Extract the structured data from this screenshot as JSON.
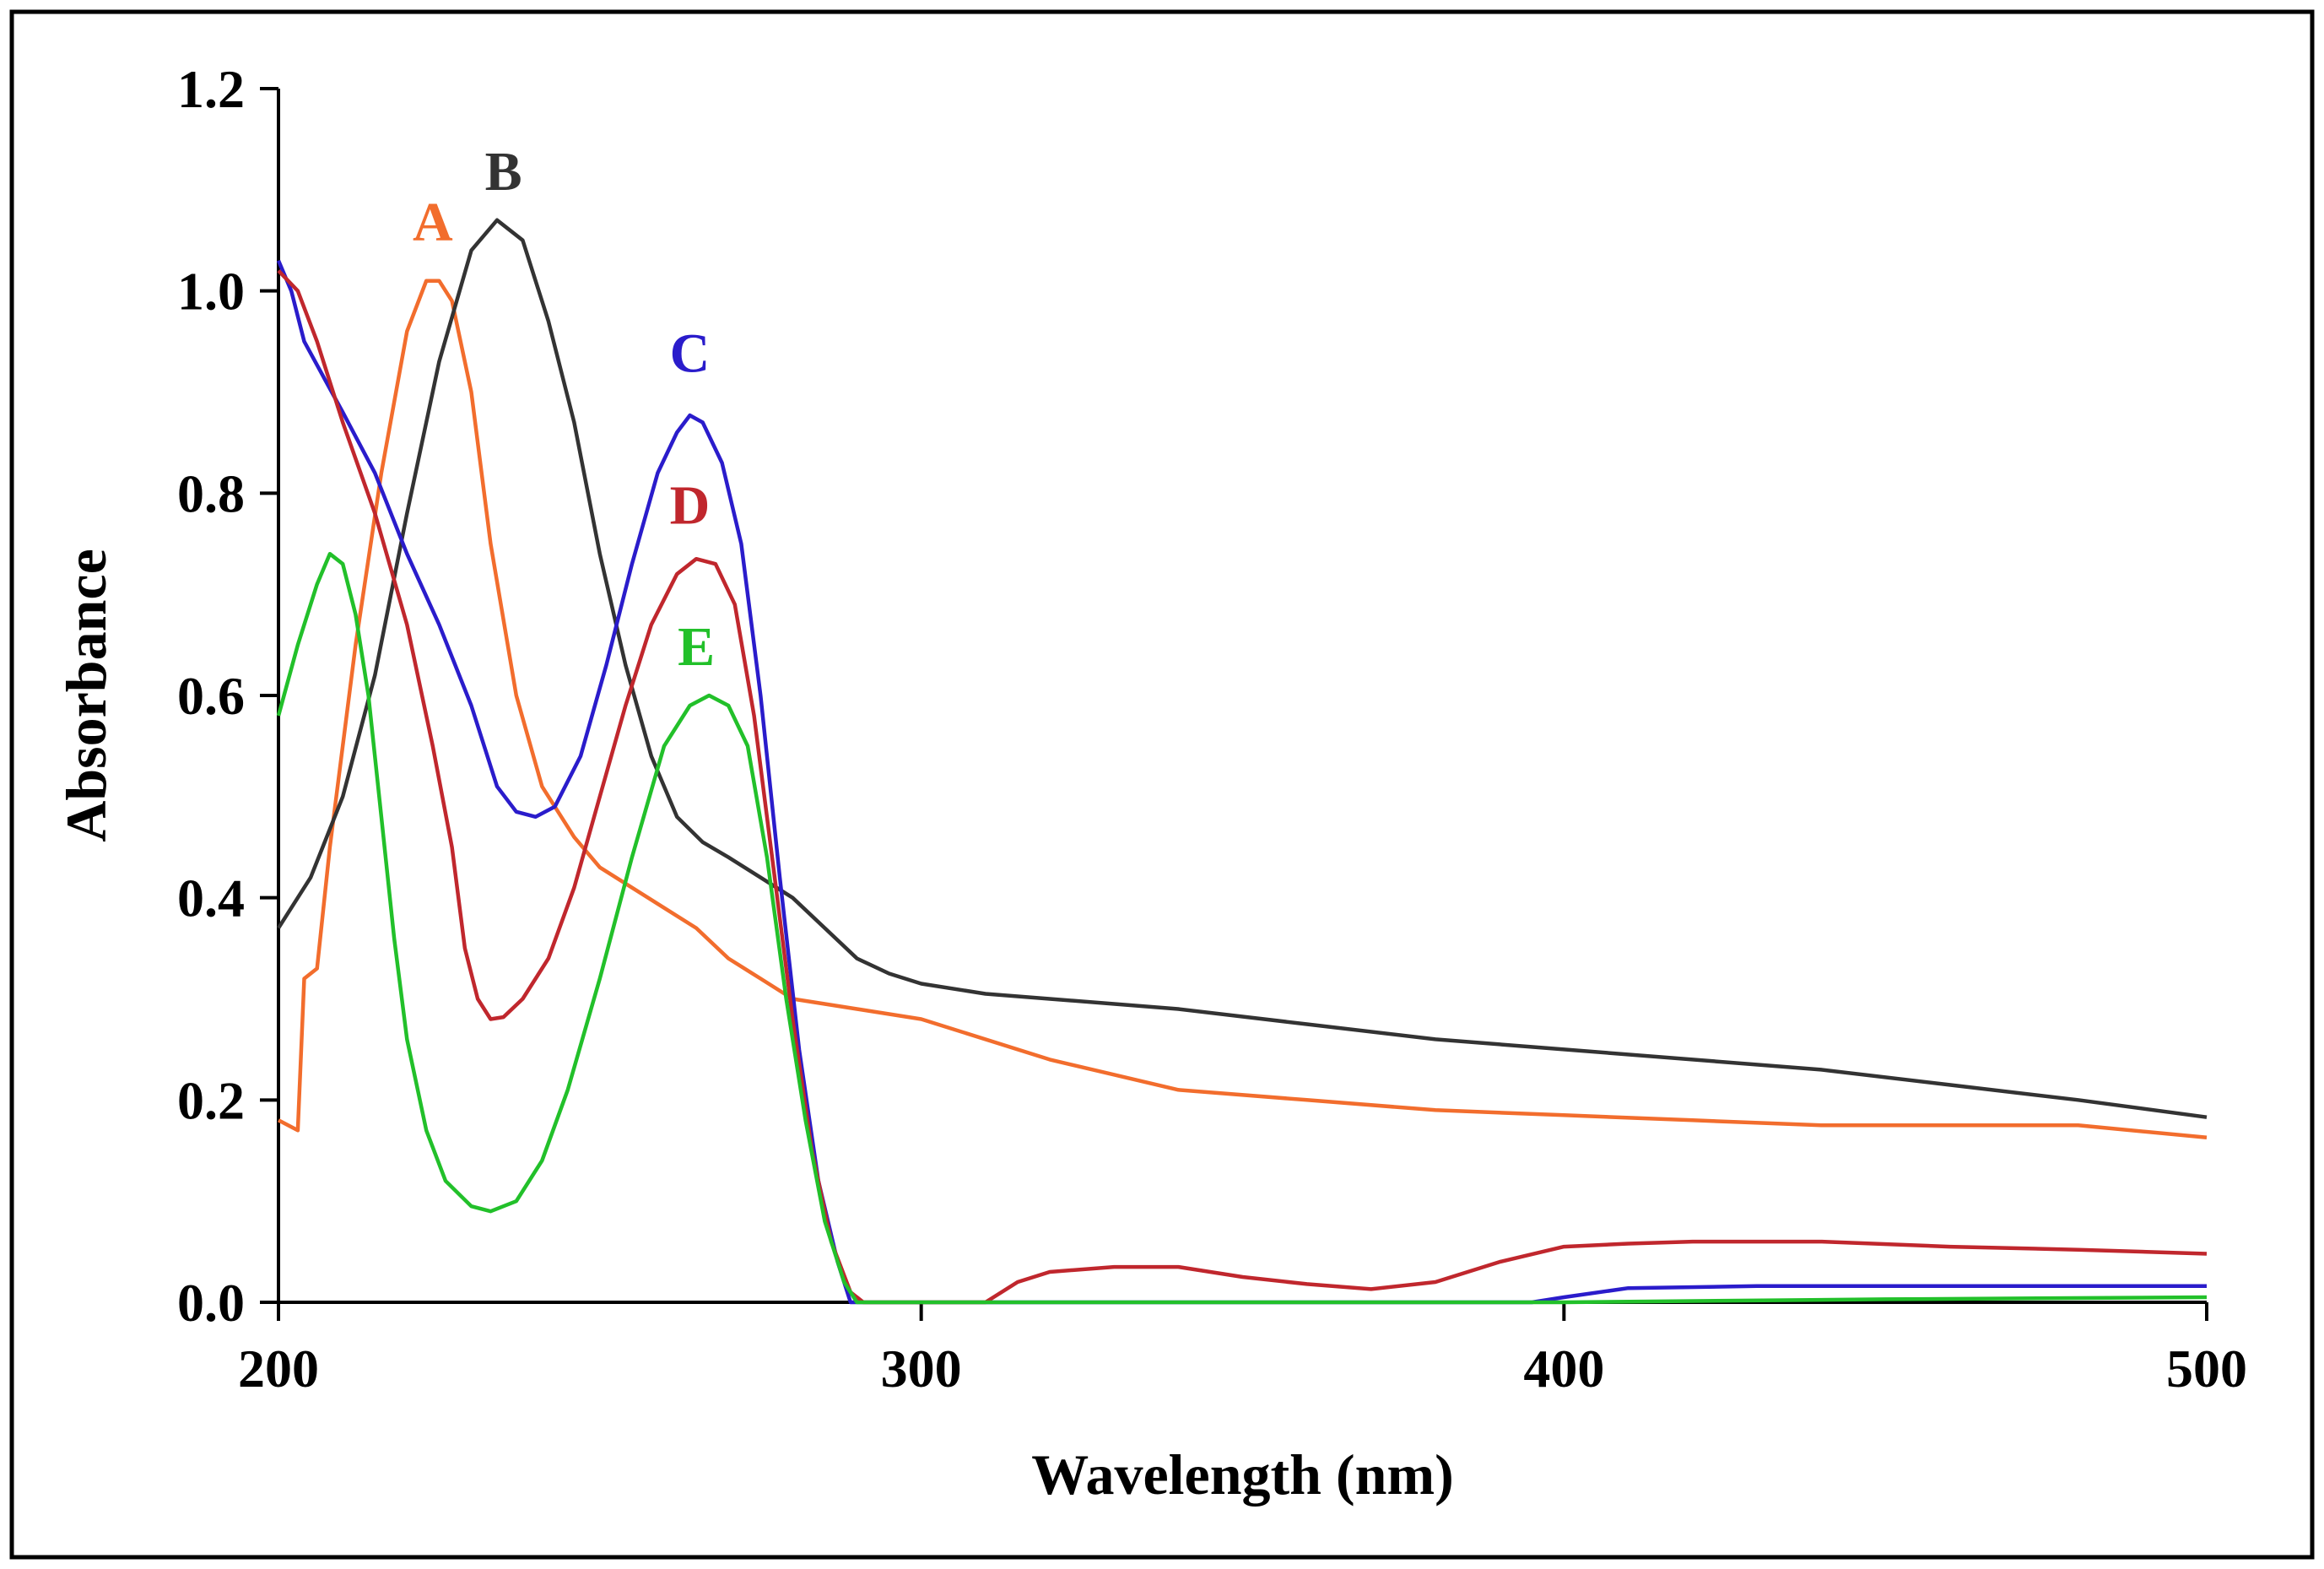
{
  "chart_data": {
    "type": "line",
    "title": "",
    "xlabel": "Wavelength (nm)",
    "ylabel": "Absorbance",
    "xlim": [
      200,
      500
    ],
    "ylim": [
      0,
      1.2
    ],
    "xticks": [
      200,
      300,
      400,
      500
    ],
    "xtick_labels": [
      "200",
      "300",
      "400",
      "500"
    ],
    "yticks": [
      0,
      0.2,
      0.4,
      0.6,
      0.8,
      1.0,
      1.2
    ],
    "ytick_labels": [
      "0.0",
      "0.2",
      "0.4",
      "0.6",
      "0.8",
      "1.0",
      "1.2"
    ],
    "grid": false,
    "series": [
      {
        "name": "A",
        "color": "#f26d2d",
        "label_at": [
          224,
          1.05
        ],
        "points": [
          [
            200,
            0.18
          ],
          [
            203,
            0.17
          ],
          [
            204,
            0.32
          ],
          [
            206,
            0.33
          ],
          [
            208,
            0.45
          ],
          [
            212,
            0.65
          ],
          [
            216,
            0.82
          ],
          [
            220,
            0.96
          ],
          [
            223,
            1.01
          ],
          [
            225,
            1.01
          ],
          [
            227,
            0.99
          ],
          [
            230,
            0.9
          ],
          [
            233,
            0.75
          ],
          [
            237,
            0.6
          ],
          [
            241,
            0.51
          ],
          [
            246,
            0.46
          ],
          [
            250,
            0.43
          ],
          [
            255,
            0.41
          ],
          [
            260,
            0.39
          ],
          [
            265,
            0.37
          ],
          [
            270,
            0.34
          ],
          [
            275,
            0.32
          ],
          [
            280,
            0.3
          ],
          [
            290,
            0.29
          ],
          [
            300,
            0.28
          ],
          [
            320,
            0.24
          ],
          [
            340,
            0.21
          ],
          [
            360,
            0.2
          ],
          [
            380,
            0.19
          ],
          [
            400,
            0.185
          ],
          [
            420,
            0.18
          ],
          [
            440,
            0.175
          ],
          [
            460,
            0.175
          ],
          [
            480,
            0.175
          ],
          [
            500,
            0.163
          ]
        ]
      },
      {
        "name": "B",
        "color": "#333333",
        "label_at": [
          235,
          1.1
        ],
        "points": [
          [
            200,
            0.37
          ],
          [
            205,
            0.42
          ],
          [
            210,
            0.5
          ],
          [
            215,
            0.62
          ],
          [
            220,
            0.78
          ],
          [
            225,
            0.93
          ],
          [
            230,
            1.04
          ],
          [
            234,
            1.07
          ],
          [
            238,
            1.05
          ],
          [
            242,
            0.97
          ],
          [
            246,
            0.87
          ],
          [
            250,
            0.74
          ],
          [
            254,
            0.63
          ],
          [
            258,
            0.54
          ],
          [
            262,
            0.48
          ],
          [
            266,
            0.455
          ],
          [
            270,
            0.44
          ],
          [
            275,
            0.42
          ],
          [
            280,
            0.4
          ],
          [
            285,
            0.37
          ],
          [
            290,
            0.34
          ],
          [
            295,
            0.325
          ],
          [
            300,
            0.315
          ],
          [
            310,
            0.305
          ],
          [
            320,
            0.3
          ],
          [
            340,
            0.29
          ],
          [
            360,
            0.275
          ],
          [
            380,
            0.26
          ],
          [
            400,
            0.25
          ],
          [
            420,
            0.24
          ],
          [
            440,
            0.23
          ],
          [
            460,
            0.215
          ],
          [
            480,
            0.2
          ],
          [
            500,
            0.183
          ]
        ]
      },
      {
        "name": "C",
        "color": "#2a1ccb",
        "label_at": [
          264,
          0.92
        ],
        "points": [
          [
            200,
            1.03
          ],
          [
            202,
            1.0
          ],
          [
            204,
            0.95
          ],
          [
            210,
            0.88
          ],
          [
            215,
            0.82
          ],
          [
            220,
            0.74
          ],
          [
            225,
            0.67
          ],
          [
            230,
            0.59
          ],
          [
            234,
            0.51
          ],
          [
            237,
            0.485
          ],
          [
            240,
            0.48
          ],
          [
            243,
            0.49
          ],
          [
            247,
            0.54
          ],
          [
            251,
            0.63
          ],
          [
            255,
            0.73
          ],
          [
            259,
            0.82
          ],
          [
            262,
            0.86
          ],
          [
            264,
            0.877
          ],
          [
            266,
            0.87
          ],
          [
            269,
            0.83
          ],
          [
            272,
            0.75
          ],
          [
            275,
            0.6
          ],
          [
            278,
            0.42
          ],
          [
            281,
            0.25
          ],
          [
            284,
            0.12
          ],
          [
            287,
            0.04
          ],
          [
            289,
            0.0
          ],
          [
            300,
            0.0
          ],
          [
            330,
            0.0
          ],
          [
            360,
            0.0
          ],
          [
            395,
            0.0
          ],
          [
            400,
            0.005
          ],
          [
            410,
            0.014
          ],
          [
            430,
            0.016
          ],
          [
            460,
            0.016
          ],
          [
            500,
            0.016
          ]
        ]
      },
      {
        "name": "D",
        "color": "#c0272d",
        "label_at": [
          264,
          0.77
        ],
        "points": [
          [
            200,
            1.02
          ],
          [
            203,
            1.0
          ],
          [
            206,
            0.95
          ],
          [
            210,
            0.87
          ],
          [
            215,
            0.78
          ],
          [
            220,
            0.67
          ],
          [
            224,
            0.55
          ],
          [
            227,
            0.45
          ],
          [
            229,
            0.35
          ],
          [
            231,
            0.3
          ],
          [
            233,
            0.28
          ],
          [
            235,
            0.282
          ],
          [
            238,
            0.3
          ],
          [
            242,
            0.34
          ],
          [
            246,
            0.41
          ],
          [
            250,
            0.5
          ],
          [
            254,
            0.59
          ],
          [
            258,
            0.67
          ],
          [
            262,
            0.72
          ],
          [
            265,
            0.735
          ],
          [
            268,
            0.73
          ],
          [
            271,
            0.69
          ],
          [
            274,
            0.58
          ],
          [
            277,
            0.43
          ],
          [
            280,
            0.28
          ],
          [
            283,
            0.15
          ],
          [
            286,
            0.06
          ],
          [
            289,
            0.01
          ],
          [
            291,
            0.0
          ],
          [
            300,
            0.0
          ],
          [
            310,
            0.0
          ],
          [
            315,
            0.02
          ],
          [
            320,
            0.03
          ],
          [
            330,
            0.035
          ],
          [
            340,
            0.035
          ],
          [
            350,
            0.025
          ],
          [
            360,
            0.018
          ],
          [
            370,
            0.013
          ],
          [
            380,
            0.02
          ],
          [
            390,
            0.04
          ],
          [
            400,
            0.055
          ],
          [
            410,
            0.058
          ],
          [
            420,
            0.06
          ],
          [
            440,
            0.06
          ],
          [
            460,
            0.055
          ],
          [
            480,
            0.052
          ],
          [
            500,
            0.048
          ]
        ]
      },
      {
        "name": "E",
        "color": "#22c02a",
        "label_at": [
          265,
          0.63
        ],
        "points": [
          [
            200,
            0.58
          ],
          [
            203,
            0.65
          ],
          [
            206,
            0.71
          ],
          [
            208,
            0.74
          ],
          [
            210,
            0.73
          ],
          [
            212,
            0.68
          ],
          [
            214,
            0.6
          ],
          [
            216,
            0.48
          ],
          [
            218,
            0.36
          ],
          [
            220,
            0.26
          ],
          [
            223,
            0.17
          ],
          [
            226,
            0.12
          ],
          [
            230,
            0.095
          ],
          [
            233,
            0.09
          ],
          [
            237,
            0.1
          ],
          [
            241,
            0.14
          ],
          [
            245,
            0.21
          ],
          [
            250,
            0.32
          ],
          [
            255,
            0.44
          ],
          [
            260,
            0.55
          ],
          [
            264,
            0.59
          ],
          [
            267,
            0.6
          ],
          [
            270,
            0.59
          ],
          [
            273,
            0.55
          ],
          [
            276,
            0.44
          ],
          [
            279,
            0.3
          ],
          [
            282,
            0.18
          ],
          [
            285,
            0.08
          ],
          [
            288,
            0.02
          ],
          [
            290,
            0.0
          ],
          [
            300,
            0.0
          ],
          [
            350,
            0.0
          ],
          [
            400,
            0.0
          ],
          [
            450,
            0.003
          ],
          [
            500,
            0.005
          ]
        ]
      }
    ]
  }
}
